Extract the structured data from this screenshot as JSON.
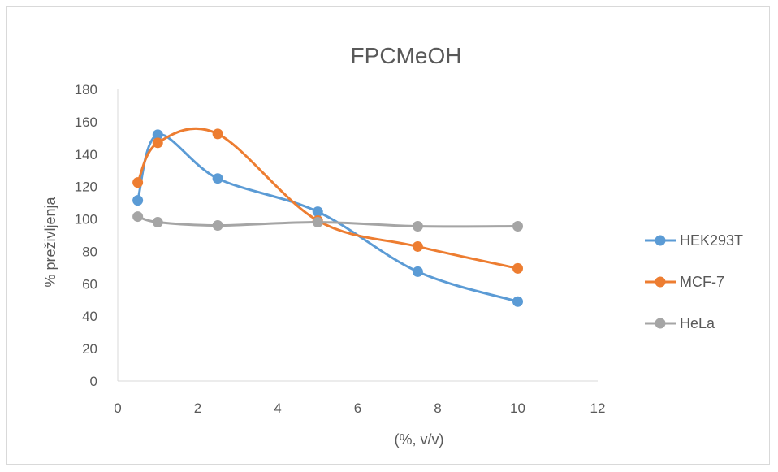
{
  "chart_data": {
    "type": "scatter",
    "title": "FPCMeOH",
    "xlabel": "(%, v/v)",
    "ylabel": "% preživljenja",
    "xlim": [
      0,
      12
    ],
    "ylim": [
      0,
      180
    ],
    "x_ticks": [
      "0",
      "2",
      "4",
      "6",
      "8",
      "10",
      "12"
    ],
    "y_ticks": [
      "0",
      "20",
      "40",
      "60",
      "80",
      "100",
      "120",
      "140",
      "160",
      "180"
    ],
    "grid": false,
    "smooth_lines": true,
    "legend_position": "right",
    "series": [
      {
        "name": "HEK293T",
        "color": "#5b9bd5",
        "x": [
          0.5,
          1,
          2.5,
          5,
          7.5,
          10
        ],
        "y": [
          111.5,
          152,
          125,
          104.5,
          67.5,
          49
        ]
      },
      {
        "name": "MCF-7",
        "color": "#ed7d31",
        "x": [
          0.5,
          1,
          2.5,
          5,
          7.5,
          10
        ],
        "y": [
          122.5,
          147,
          152.5,
          99,
          83,
          69.5
        ]
      },
      {
        "name": "HeLa",
        "color": "#a5a5a5",
        "x": [
          0.5,
          1,
          2.5,
          5,
          7.5,
          10
        ],
        "y": [
          101.5,
          98,
          96,
          98,
          95.5,
          95.5
        ]
      }
    ]
  }
}
